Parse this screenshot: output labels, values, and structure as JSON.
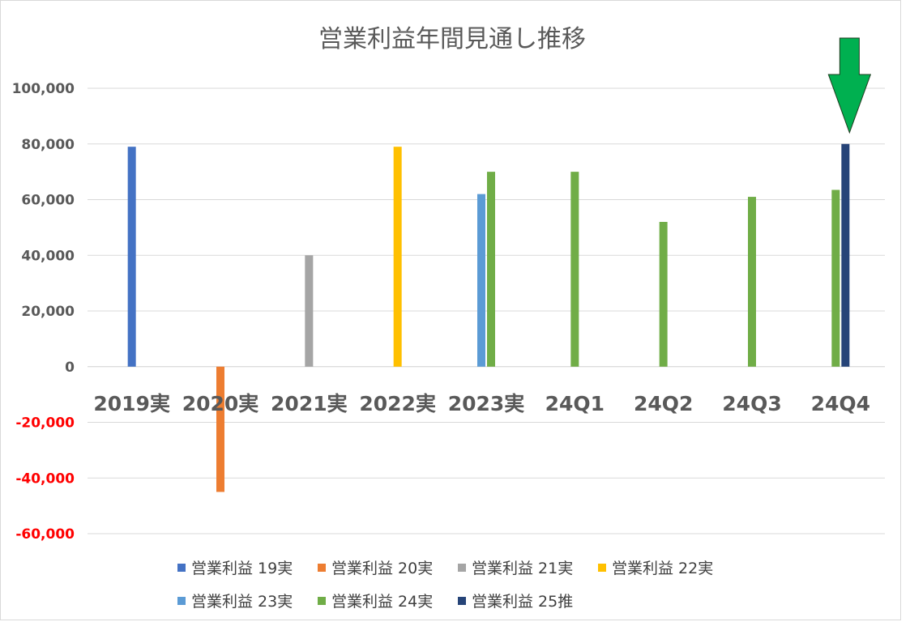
{
  "chart_data": {
    "type": "bar",
    "title": "営業利益年間見通し推移",
    "categories": [
      "2019実",
      "2020実",
      "2021実",
      "2022実",
      "2023実",
      "24Q1",
      "24Q2",
      "24Q3",
      "24Q4"
    ],
    "ylim": [
      -60000,
      100000
    ],
    "yticks": [
      {
        "value": 100000,
        "label": "100,000",
        "color": "#595959"
      },
      {
        "value": 80000,
        "label": "80,000",
        "color": "#595959"
      },
      {
        "value": 60000,
        "label": "60,000",
        "color": "#595959"
      },
      {
        "value": 40000,
        "label": "40,000",
        "color": "#595959"
      },
      {
        "value": 20000,
        "label": "20,000",
        "color": "#595959"
      },
      {
        "value": 0,
        "label": "0",
        "color": "#595959"
      },
      {
        "value": -20000,
        "label": "-20,000",
        "color": "#ff0000"
      },
      {
        "value": -40000,
        "label": "-40,000",
        "color": "#ff0000"
      },
      {
        "value": -60000,
        "label": "-60,000",
        "color": "#ff0000"
      }
    ],
    "grid": true,
    "legend_position": "bottom",
    "series": [
      {
        "name": "営業利益 19実",
        "color": "#4472c4",
        "values": [
          79000,
          null,
          null,
          null,
          null,
          null,
          null,
          null,
          null
        ]
      },
      {
        "name": "営業利益 20実",
        "color": "#ed7d31",
        "values": [
          null,
          -45000,
          null,
          null,
          null,
          null,
          null,
          null,
          null
        ]
      },
      {
        "name": "営業利益 21実",
        "color": "#a5a5a5",
        "values": [
          null,
          null,
          40000,
          null,
          null,
          null,
          null,
          null,
          null
        ]
      },
      {
        "name": "営業利益 22実",
        "color": "#ffc000",
        "values": [
          null,
          null,
          null,
          79000,
          null,
          null,
          null,
          null,
          null
        ]
      },
      {
        "name": "営業利益 23実",
        "color": "#5b9bd5",
        "values": [
          null,
          null,
          null,
          null,
          62000,
          null,
          null,
          null,
          null
        ]
      },
      {
        "name": "営業利益 24実",
        "color": "#70ad47",
        "values": [
          null,
          null,
          null,
          null,
          70000,
          70000,
          52000,
          61000,
          63500
        ]
      },
      {
        "name": "営業利益 25推",
        "color": "#264478",
        "values": [
          null,
          null,
          null,
          null,
          null,
          null,
          null,
          null,
          80000
        ]
      }
    ],
    "annotation": {
      "type": "arrow-down",
      "color": "#00b050",
      "target_category": "24Q4"
    }
  }
}
